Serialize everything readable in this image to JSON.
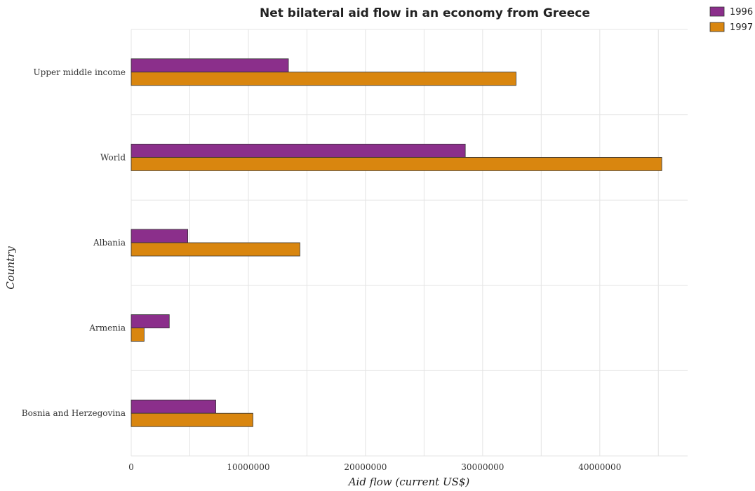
{
  "chart_data": {
    "type": "bar",
    "orientation": "horizontal",
    "title": "Net bilateral aid flow in an economy from Greece",
    "xlabel": "Aid flow (current US$)",
    "ylabel": "Country",
    "categories": [
      "Upper middle income",
      "World",
      "Albania",
      "Armenia",
      "Bosnia and Herzegovina"
    ],
    "series": [
      {
        "name": "1996",
        "color": "#8b2f8b",
        "values": [
          13420000,
          28520000,
          4830000,
          3250000,
          7220000
        ]
      },
      {
        "name": "1997",
        "color": "#d9860f",
        "values": [
          32850000,
          45290000,
          14400000,
          1100000,
          10390000
        ]
      }
    ],
    "xlim": [
      0,
      47500000
    ],
    "xticks": [
      0,
      10000000,
      20000000,
      30000000,
      40000000
    ],
    "xtick_labels": [
      "0",
      "10000000",
      "20000000",
      "30000000",
      "40000000"
    ],
    "grid": true,
    "legend_position": "top-right"
  }
}
